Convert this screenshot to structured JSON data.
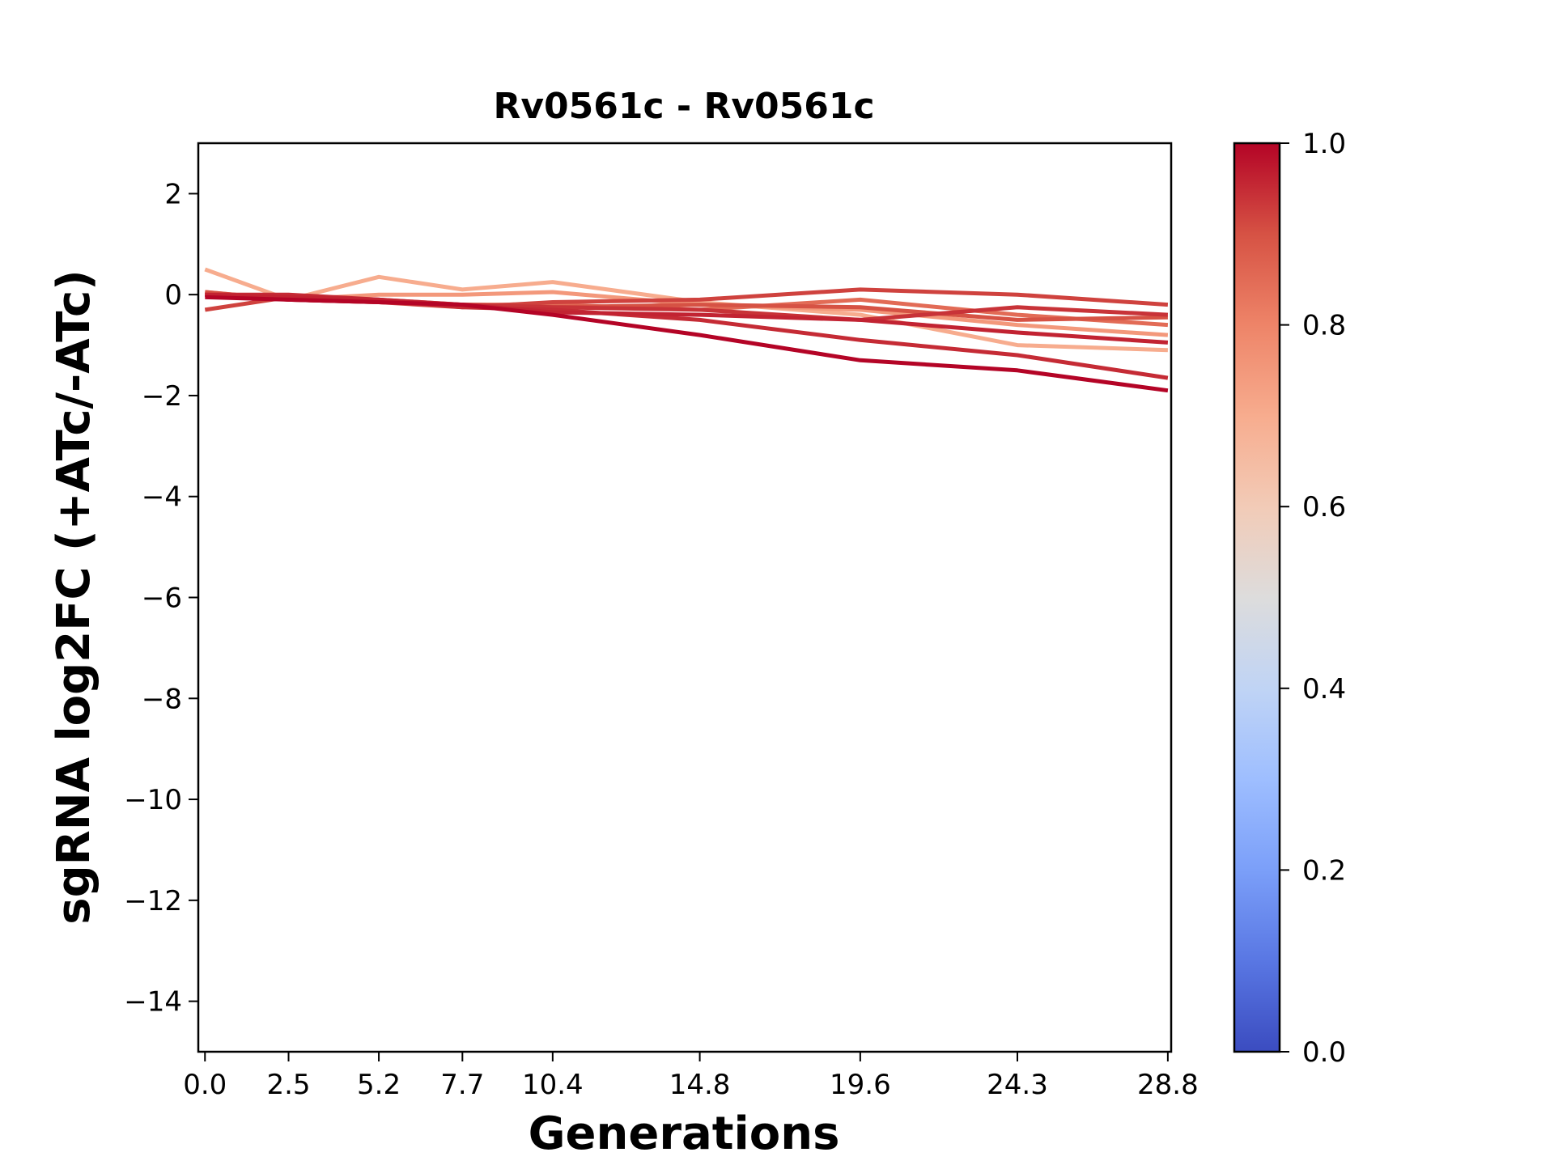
{
  "chart_data": {
    "type": "line",
    "title": "Rv0561c - Rv0561c",
    "xlabel": "Generations",
    "ylabel": "sgRNA log2FC (+ATc/-ATc)",
    "x": [
      0.0,
      2.5,
      5.2,
      7.7,
      10.4,
      14.8,
      19.6,
      24.3,
      28.8
    ],
    "x_tick_labels": [
      "0.0",
      "2.5",
      "5.2",
      "7.7",
      "10.4",
      "14.8",
      "19.6",
      "24.3",
      "28.8"
    ],
    "xlim": [
      -0.2,
      28.9
    ],
    "ylim": [
      -15,
      3
    ],
    "y_ticks": [
      2,
      0,
      -2,
      -4,
      -6,
      -8,
      -10,
      -12,
      -14
    ],
    "y_tick_labels": [
      "2",
      "0",
      "−2",
      "−4",
      "−6",
      "−8",
      "−10",
      "−12",
      "−14"
    ],
    "grid": false,
    "colorbar": {
      "colormap": "coolwarm",
      "range": [
        0,
        1
      ],
      "ticks": [
        0.0,
        0.2,
        0.4,
        0.6,
        0.8,
        1.0
      ],
      "tick_labels": [
        "0.0",
        "0.2",
        "0.4",
        "0.6",
        "0.8",
        "1.0"
      ]
    },
    "series": [
      {
        "color_value": 0.7,
        "values": [
          0.5,
          -0.1,
          0.35,
          0.1,
          0.25,
          -0.15,
          -0.4,
          -1.0,
          -1.1
        ]
      },
      {
        "color_value": 0.75,
        "values": [
          0.05,
          -0.1,
          0.0,
          0.0,
          0.05,
          -0.2,
          -0.3,
          -0.6,
          -0.8
        ]
      },
      {
        "color_value": 0.85,
        "values": [
          0.0,
          -0.05,
          -0.1,
          -0.2,
          -0.2,
          -0.3,
          -0.1,
          -0.4,
          -0.6
        ]
      },
      {
        "color_value": 0.9,
        "values": [
          0.05,
          -0.1,
          -0.15,
          -0.2,
          -0.25,
          -0.2,
          -0.25,
          -0.5,
          -0.45
        ]
      },
      {
        "color_value": 0.92,
        "values": [
          -0.3,
          -0.05,
          -0.15,
          -0.25,
          -0.15,
          -0.1,
          0.1,
          0.0,
          -0.2
        ]
      },
      {
        "color_value": 0.94,
        "values": [
          0.0,
          -0.1,
          -0.15,
          -0.2,
          -0.25,
          -0.3,
          -0.5,
          -0.25,
          -0.4
        ]
      },
      {
        "color_value": 0.95,
        "values": [
          0.0,
          0.0,
          -0.1,
          -0.25,
          -0.3,
          -0.5,
          -0.9,
          -1.2,
          -1.65
        ]
      },
      {
        "color_value": 0.96,
        "values": [
          0.0,
          -0.05,
          -0.1,
          -0.2,
          -0.35,
          -0.4,
          -0.5,
          -0.75,
          -0.95
        ]
      },
      {
        "color_value": 1.0,
        "values": [
          -0.05,
          -0.1,
          -0.15,
          -0.2,
          -0.4,
          -0.8,
          -1.3,
          -1.5,
          -1.9
        ]
      }
    ]
  }
}
